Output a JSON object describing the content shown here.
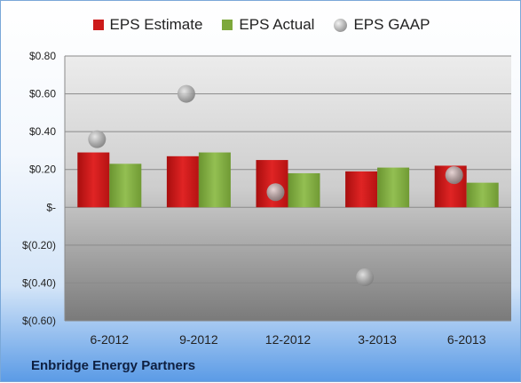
{
  "footer": {
    "company": "Enbridge Energy Partners"
  },
  "chart_data": {
    "type": "bar",
    "title": "",
    "xlabel": "",
    "ylabel": "",
    "categories": [
      "6-2012",
      "9-2012",
      "12-2012",
      "3-2013",
      "6-2013"
    ],
    "ylim": [
      -0.6,
      0.8
    ],
    "yticks": [
      0.8,
      0.6,
      0.4,
      0.2,
      0.0,
      -0.2,
      -0.4,
      -0.6
    ],
    "ytick_labels": [
      "$0.80",
      "$0.60",
      "$0.40",
      "$0.20",
      "$-",
      "$(0.20)",
      "$(0.40)",
      "$(0.60)"
    ],
    "grid": true,
    "legend_position": "top",
    "series": [
      {
        "name": "EPS Estimate",
        "kind": "bar",
        "color": "#cc1a1a",
        "values": [
          0.29,
          0.27,
          0.25,
          0.19,
          0.22
        ]
      },
      {
        "name": "EPS Actual",
        "kind": "bar",
        "color": "#7da83b",
        "values": [
          0.23,
          0.29,
          0.18,
          0.21,
          0.13
        ]
      },
      {
        "name": "EPS GAAP",
        "kind": "scatter",
        "color": "#a8a8a8",
        "values": [
          0.36,
          0.6,
          0.08,
          -0.37,
          0.17
        ]
      }
    ]
  }
}
